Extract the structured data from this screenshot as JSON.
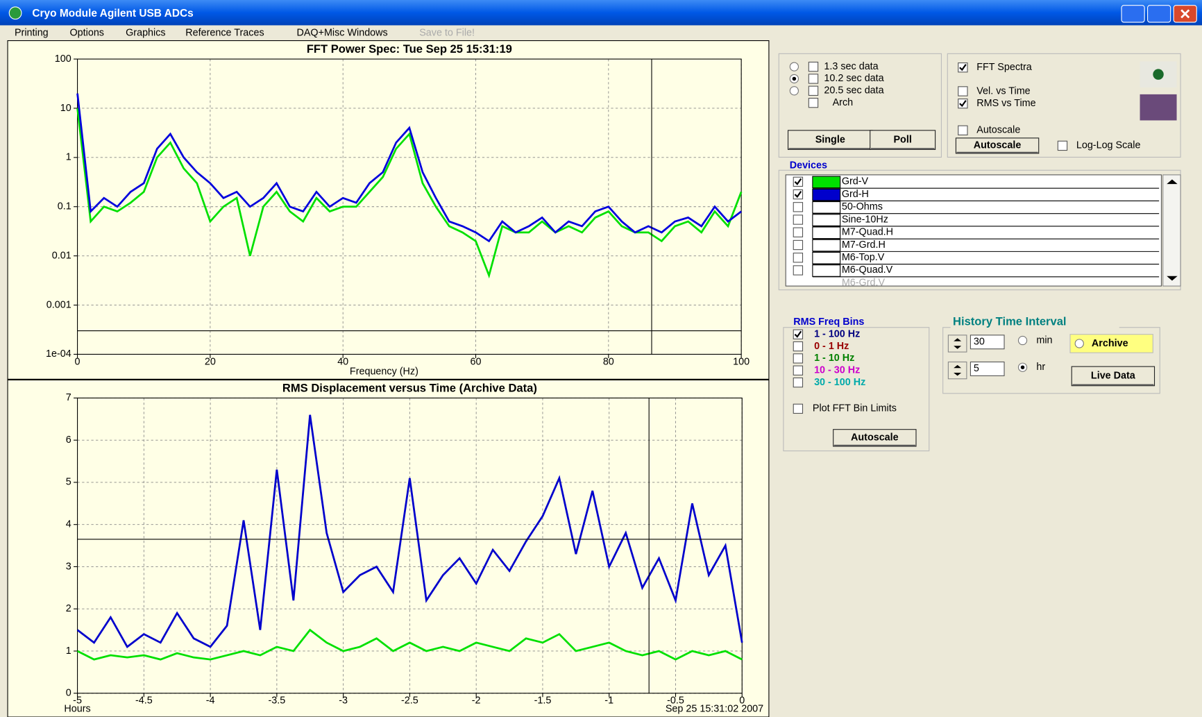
{
  "window": {
    "title": "Cryo Module Agilent USB ADCs"
  },
  "menu": [
    "Printing",
    "Options",
    "Graphics",
    "Reference Traces",
    "DAQ+Misc Windows",
    "Save to File!"
  ],
  "data_span": {
    "items": [
      "1.3 sec data",
      "10.2 sec data",
      "20.5 sec data",
      "Arch"
    ],
    "selected": 1
  },
  "buttons": {
    "single": "Single",
    "poll": "Poll",
    "autoscale": "Autoscale",
    "autoscale_rms": "Autoscale",
    "live": "Live Data"
  },
  "plot_options": {
    "items": [
      "FFT Spectra",
      "Vel.  vs Time",
      "RMS vs Time",
      "Autoscale",
      "Log-Log Scale"
    ],
    "checked": [
      true,
      false,
      true,
      false,
      false
    ]
  },
  "devices": {
    "title": "Devices",
    "items": [
      "Grd-V",
      "Grd-H",
      "50-Ohms",
      "Sine-10Hz",
      "M7-Quad.H",
      "M7-Grd.H",
      "M6-Top.V",
      "M6-Quad.V",
      "M6-Grd.V"
    ],
    "checked": [
      true,
      true,
      false,
      false,
      false,
      false,
      false,
      false,
      false
    ],
    "colors": [
      "#00e000",
      "#0000cc",
      null,
      null,
      null,
      null,
      null,
      null,
      null
    ]
  },
  "rms_bins": {
    "title": "RMS Freq Bins",
    "items": [
      "1 - 100 Hz",
      "0 - 1 Hz",
      "1 - 10 Hz",
      "10 - 30 Hz",
      "30 - 100 Hz"
    ],
    "colors": [
      "#000080",
      "#990000",
      "#008000",
      "#cc00cc",
      "#00aaaa"
    ],
    "checked": [
      true,
      false,
      false,
      false,
      false
    ],
    "plot_limits": "Plot FFT Bin Limits"
  },
  "history": {
    "title": "History Time Interval",
    "min_value": "30",
    "hr_value": "5",
    "min": "min",
    "hr": "hr",
    "archive": "Archive"
  },
  "chart_data": [
    {
      "type": "line",
      "title": "FFT Power Spec:  Tue Sep 25   15:31:19",
      "xlabel": "Frequency (Hz)",
      "yscale": "log",
      "xlim": [
        0,
        100
      ],
      "ylim": [
        0.0001,
        100
      ],
      "xticks": [
        0,
        20,
        40,
        60,
        80,
        100
      ],
      "yticks": [
        100,
        10,
        1,
        0.1,
        0.01,
        0.001,
        {
          "value": 0.0001,
          "label": "1e-04"
        }
      ],
      "grid": true,
      "x": [
        0,
        2,
        4,
        6,
        8,
        10,
        12,
        14,
        16,
        18,
        20,
        22,
        24,
        26,
        28,
        30,
        32,
        34,
        36,
        38,
        40,
        42,
        44,
        46,
        48,
        50,
        52,
        54,
        56,
        58,
        60,
        62,
        64,
        66,
        68,
        70,
        72,
        74,
        76,
        78,
        80,
        82,
        84,
        86,
        88,
        90,
        92,
        94,
        96,
        98,
        100
      ],
      "series": [
        {
          "color": "#00e000",
          "values": [
            10,
            0.05,
            0.1,
            0.08,
            0.12,
            0.2,
            1,
            2,
            0.6,
            0.3,
            0.05,
            0.1,
            0.15,
            0.01,
            0.1,
            0.2,
            0.08,
            0.05,
            0.15,
            0.08,
            0.1,
            0.1,
            0.2,
            0.4,
            1.5,
            3,
            0.3,
            0.1,
            0.04,
            0.03,
            0.02,
            0.004,
            0.04,
            0.03,
            0.03,
            0.05,
            0.03,
            0.04,
            0.03,
            0.06,
            0.08,
            0.04,
            0.03,
            0.03,
            0.02,
            0.04,
            0.05,
            0.03,
            0.08,
            0.04,
            0.2
          ]
        },
        {
          "color": "#0000dd",
          "values": [
            20,
            0.08,
            0.15,
            0.1,
            0.2,
            0.3,
            1.5,
            3,
            1,
            0.5,
            0.3,
            0.15,
            0.2,
            0.1,
            0.15,
            0.3,
            0.1,
            0.08,
            0.2,
            0.1,
            0.15,
            0.12,
            0.3,
            0.5,
            2,
            4,
            0.5,
            0.15,
            0.05,
            0.04,
            0.03,
            0.02,
            0.05,
            0.03,
            0.04,
            0.06,
            0.03,
            0.05,
            0.04,
            0.08,
            0.1,
            0.05,
            0.03,
            0.04,
            0.03,
            0.05,
            0.06,
            0.04,
            0.1,
            0.05,
            0.08
          ]
        }
      ],
      "cursor": {
        "x": 86.5,
        "y": 0.0003
      }
    },
    {
      "type": "line",
      "title": "RMS Displacement versus Time (Archive Data)",
      "xlabel": "Hours",
      "timestamp": "Sep 25 15:31:02 2007",
      "xlim": [
        -5,
        0
      ],
      "ylim": [
        0,
        7
      ],
      "xticks": [
        -5,
        -4.5,
        -4,
        -3.5,
        -3,
        -2.5,
        -2,
        -1.5,
        -1,
        -0.5,
        0
      ],
      "yticks": [
        0,
        1,
        2,
        3,
        4,
        5,
        6,
        7
      ],
      "grid": true,
      "x": [
        -5,
        -4.875,
        -4.75,
        -4.625,
        -4.5,
        -4.375,
        -4.25,
        -4.125,
        -4,
        -3.875,
        -3.75,
        -3.625,
        -3.5,
        -3.375,
        -3.25,
        -3.125,
        -3,
        -2.875,
        -2.75,
        -2.625,
        -2.5,
        -2.375,
        -2.25,
        -2.125,
        -2,
        -1.875,
        -1.75,
        -1.625,
        -1.5,
        -1.375,
        -1.25,
        -1.125,
        -1,
        -0.875,
        -0.75,
        -0.625,
        -0.5,
        -0.375,
        -0.25,
        -0.125,
        0
      ],
      "series": [
        {
          "color": "#00e000",
          "values": [
            1.0,
            0.8,
            0.9,
            0.85,
            0.9,
            0.8,
            0.95,
            0.85,
            0.8,
            0.9,
            1.0,
            0.9,
            1.1,
            1.0,
            1.5,
            1.2,
            1.0,
            1.1,
            1.3,
            1.0,
            1.2,
            1.0,
            1.1,
            1.0,
            1.2,
            1.1,
            1.0,
            1.3,
            1.2,
            1.4,
            1.0,
            1.1,
            1.2,
            1.0,
            0.9,
            1.0,
            0.8,
            1.0,
            0.9,
            1.0,
            0.8
          ]
        },
        {
          "color": "#0000cc",
          "values": [
            1.5,
            1.2,
            1.8,
            1.1,
            1.4,
            1.2,
            1.9,
            1.3,
            1.1,
            1.6,
            4.1,
            1.5,
            5.3,
            2.2,
            6.6,
            3.8,
            2.4,
            2.8,
            3.0,
            2.4,
            5.1,
            2.2,
            2.8,
            3.2,
            2.6,
            3.4,
            2.9,
            3.6,
            4.2,
            5.1,
            3.3,
            4.8,
            3.0,
            3.8,
            2.5,
            3.2,
            2.2,
            4.5,
            2.8,
            3.5,
            1.2
          ]
        }
      ],
      "cursor": {
        "x": -0.7,
        "y": 3.65
      }
    }
  ]
}
